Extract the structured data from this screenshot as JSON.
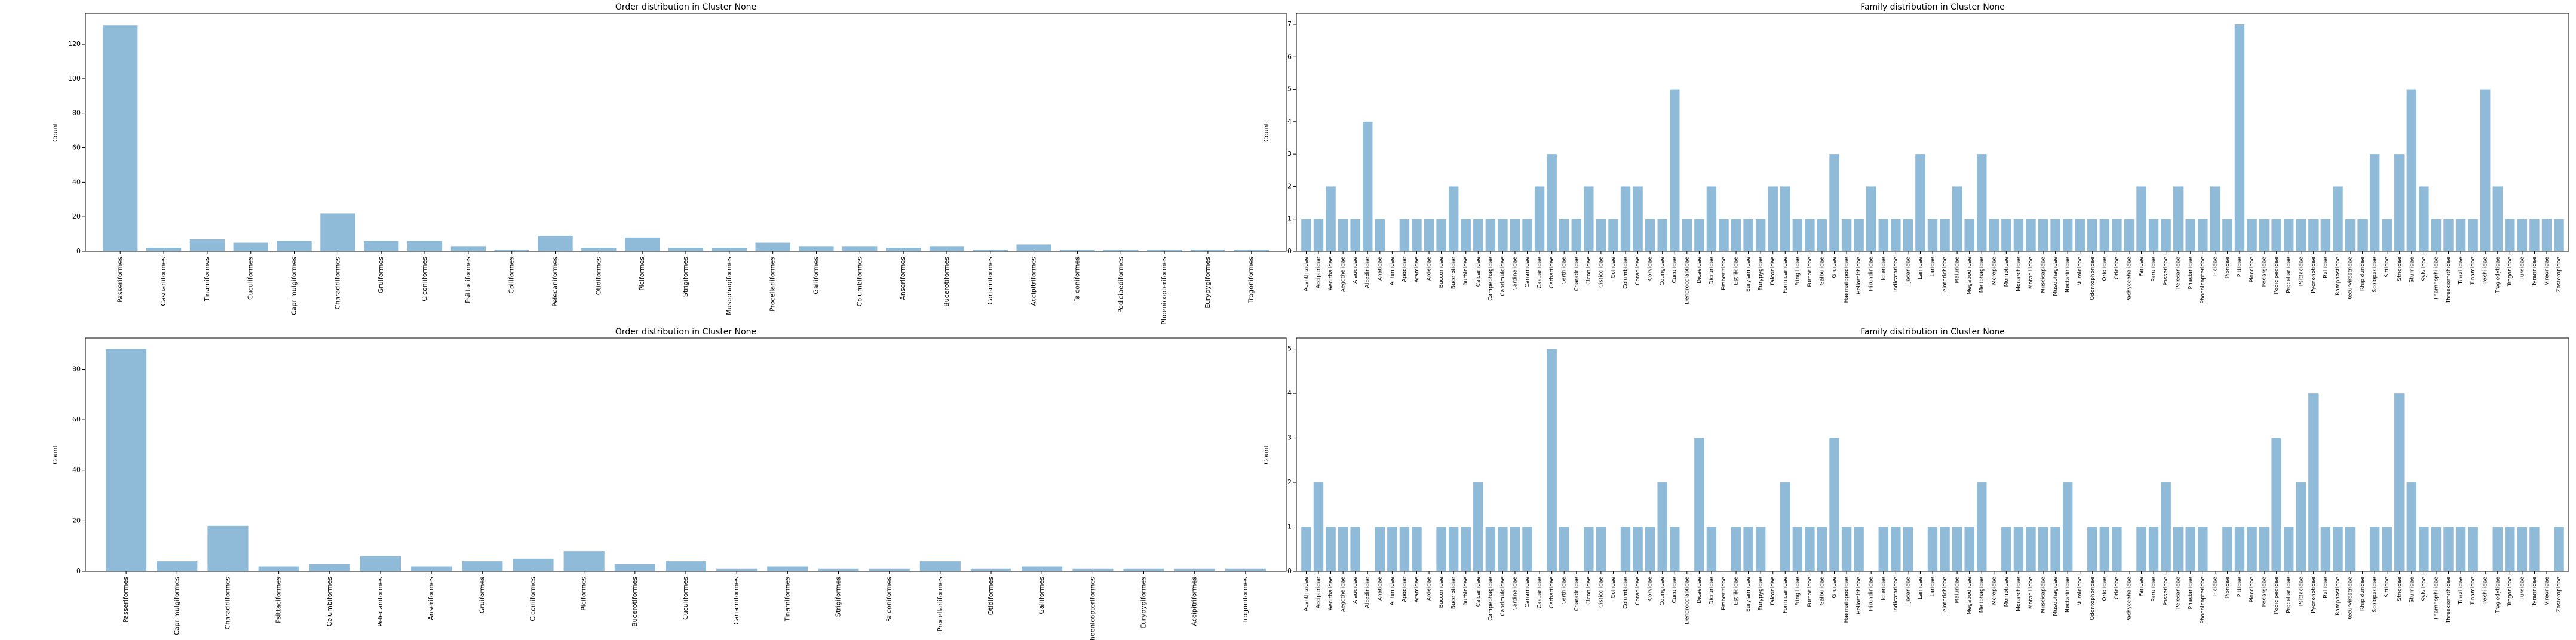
{
  "chart_data": [
    {
      "type": "bar",
      "title": "Order distribution in Cluster None",
      "ylabel": "Count",
      "color": "#8fbbd9",
      "categories": [
        "Passeriformes",
        "Casuariiformes",
        "Tinamiformes",
        "Cuculiformes",
        "Caprimulgiformes",
        "Charadriiformes",
        "Gruiformes",
        "Ciconiiformes",
        "Psittaciformes",
        "Coliiformes",
        "Pelecaniformes",
        "Otidiformes",
        "Piciformes",
        "Strigiformes",
        "Musophagiformes",
        "Procellariiformes",
        "Galliformes",
        "Columbiformes",
        "Anseriformes",
        "Bucerotiformes",
        "Cariamiformes",
        "Accipitriformes",
        "Falconiformes",
        "Podicipediformes",
        "Phoenicopteriformes",
        "Eurypygiformes",
        "Trogoniformes"
      ],
      "values": [
        131,
        2,
        7,
        5,
        6,
        22,
        6,
        6,
        3,
        1,
        9,
        2,
        8,
        2,
        2,
        5,
        3,
        3,
        2,
        3,
        1,
        4,
        1,
        1,
        1,
        1,
        1
      ],
      "ylim": [
        0,
        138
      ],
      "yticks": [
        0,
        20,
        40,
        60,
        80,
        100,
        120
      ]
    },
    {
      "type": "bar",
      "title": "Family distribution in Cluster None",
      "ylabel": "Count",
      "color": "#8fbbd9",
      "categories": [
        "Acanthizidae",
        "Accipitridae",
        "Aegithalidae",
        "Aegothelidae",
        "Alaudidae",
        "Alcedinidae",
        "Anatidae",
        "Anhimidae",
        "Apodidae",
        "Aramidae",
        "Ardeidae",
        "Bucconidae",
        "Bucerotidae",
        "Burhinidae",
        "Calcariidae",
        "Campephagidae",
        "Caprimulgidae",
        "Cardinalidae",
        "Cariamidae",
        "Casuariidae",
        "Cathartidae",
        "Certhiidae",
        "Charadriidae",
        "Ciconiidae",
        "Cisticolidae",
        "Coliidae",
        "Columbidae",
        "Coraciidae",
        "Corvidae",
        "Cotingidae",
        "Cuculidae",
        "Dendrocolaptidae",
        "Dicaeidae",
        "Dicruridae",
        "Emberizidae",
        "Estrildidae",
        "Eurylaimidae",
        "Eurypygidae",
        "Falconidae",
        "Formicariidae",
        "Fringillidae",
        "Furnariidae",
        "Galbulidae",
        "Gruidae",
        "Haematopodidae",
        "Heliornithidae",
        "Hirundinidae",
        "Icteridae",
        "Indicatoridae",
        "Jacanidae",
        "Laniidae",
        "Laridae",
        "Leiothrichidae",
        "Maluridae",
        "Megapodiidae",
        "Meliphagidae",
        "Meropidae",
        "Momotidae",
        "Monarchidae",
        "Motacillidae",
        "Muscicapidae",
        "Musophagidae",
        "Nectariniidae",
        "Numididae",
        "Odontophoridae",
        "Oriolidae",
        "Otididae",
        "Pachycephalidae",
        "Paridae",
        "Parulidae",
        "Passeridae",
        "Pelecanidae",
        "Phasianidae",
        "Phoenicopteridae",
        "Picidae",
        "Pipridae",
        "Pittidae",
        "Ploceidae",
        "Podargidae",
        "Podicipedidae",
        "Procellariidae",
        "Psittacidae",
        "Pycnonotidae",
        "Rallidae",
        "Ramphastidae",
        "Recurvirostridae",
        "Rhipiduridae",
        "Scolopacidae",
        "Sittidae",
        "Strigidae",
        "Sturnidae",
        "Sylviidae",
        "Thamnophilidae",
        "Threskiornithidae",
        "Timaliidae",
        "Tinamidae",
        "Trochilidae",
        "Troglodytidae",
        "Trogonidae",
        "Turdidae",
        "Tyrannidae",
        "Vireonidae",
        "Zosteropidae"
      ],
      "values": [
        1,
        1,
        2,
        1,
        1,
        4,
        1,
        0,
        1,
        1,
        1,
        1,
        2,
        1,
        1,
        1,
        1,
        1,
        1,
        2,
        3,
        1,
        1,
        2,
        1,
        1,
        2,
        2,
        1,
        1,
        5,
        1,
        1,
        2,
        1,
        1,
        1,
        1,
        2,
        2,
        1,
        1,
        1,
        3,
        1,
        1,
        2,
        1,
        1,
        1,
        3,
        1,
        1,
        2,
        1,
        3,
        1,
        1,
        1,
        1,
        1,
        1,
        1,
        1,
        1,
        1,
        1,
        1,
        2,
        1,
        1,
        2,
        1,
        1,
        2,
        1,
        7,
        1,
        1,
        1,
        1,
        1,
        1,
        1,
        2,
        1,
        1,
        3,
        1,
        3,
        5,
        2,
        1,
        1,
        1,
        1,
        5,
        2,
        1,
        1,
        1,
        1,
        1
      ],
      "ylim": [
        0,
        7.35
      ],
      "yticks": [
        0,
        1,
        2,
        3,
        4,
        5,
        6,
        7
      ]
    },
    {
      "type": "bar",
      "title": "Order distribution in Cluster None",
      "ylabel": "Count",
      "color": "#8fbbd9",
      "categories": [
        "Passeriformes",
        "Caprimulgiformes",
        "Charadriiformes",
        "Psittaciformes",
        "Columbiformes",
        "Pelecaniformes",
        "Anseriformes",
        "Gruiformes",
        "Ciconiiformes",
        "Piciformes",
        "Bucerotiformes",
        "Cuculiformes",
        "Cariamiformes",
        "Tinamiformes",
        "Strigiformes",
        "Falconiformes",
        "Procellariiformes",
        "Otidiformes",
        "Galliformes",
        "Phoenicopteriformes",
        "Eurypygiformes",
        "Accipitriformes",
        "Trogoniformes"
      ],
      "values": [
        88,
        4,
        18,
        2,
        3,
        6,
        2,
        4,
        5,
        8,
        3,
        4,
        1,
        2,
        1,
        1,
        4,
        1,
        2,
        1,
        1,
        1,
        1
      ],
      "ylim": [
        0,
        92.4
      ],
      "yticks": [
        0,
        20,
        40,
        60,
        80
      ]
    },
    {
      "type": "bar",
      "title": "Family distribution in Cluster None",
      "ylabel": "Count",
      "color": "#8fbbd9",
      "categories": [
        "Acanthizidae",
        "Accipitridae",
        "Aegithalidae",
        "Aegothelidae",
        "Alaudidae",
        "Alcedinidae",
        "Anatidae",
        "Anhimidae",
        "Apodidae",
        "Aramidae",
        "Ardeidae",
        "Bucconidae",
        "Bucerotidae",
        "Burhinidae",
        "Calcariidae",
        "Campephagidae",
        "Caprimulgidae",
        "Cardinalidae",
        "Cariamidae",
        "Casuariidae",
        "Cathartidae",
        "Certhiidae",
        "Charadriidae",
        "Ciconiidae",
        "Cisticolidae",
        "Coliidae",
        "Columbidae",
        "Coraciidae",
        "Corvidae",
        "Cotingidae",
        "Cuculidae",
        "Dendrocolaptidae",
        "Dicaeidae",
        "Dicruridae",
        "Emberizidae",
        "Estrildidae",
        "Eurylaimidae",
        "Eurypygidae",
        "Falconidae",
        "Formicariidae",
        "Fringillidae",
        "Furnariidae",
        "Galbulidae",
        "Gruidae",
        "Haematopodidae",
        "Heliornithidae",
        "Hirundinidae",
        "Icteridae",
        "Indicatoridae",
        "Jacanidae",
        "Laniidae",
        "Laridae",
        "Leiothrichidae",
        "Maluridae",
        "Megapodiidae",
        "Meliphagidae",
        "Meropidae",
        "Momotidae",
        "Monarchidae",
        "Motacillidae",
        "Muscicapidae",
        "Musophagidae",
        "Nectariniidae",
        "Numididae",
        "Odontophoridae",
        "Oriolidae",
        "Otididae",
        "Pachycephalidae",
        "Paridae",
        "Parulidae",
        "Passeridae",
        "Pelecanidae",
        "Phasianidae",
        "Phoenicopteridae",
        "Picidae",
        "Pipridae",
        "Pittidae",
        "Ploceidae",
        "Podargidae",
        "Podicipedidae",
        "Procellariidae",
        "Psittacidae",
        "Pycnonotidae",
        "Rallidae",
        "Ramphastidae",
        "Recurvirostridae",
        "Rhipiduridae",
        "Scolopacidae",
        "Sittidae",
        "Strigidae",
        "Sturnidae",
        "Sylviidae",
        "Thamnophilidae",
        "Threskiornithidae",
        "Timaliidae",
        "Tinamidae",
        "Trochilidae",
        "Troglodytidae",
        "Trogonidae",
        "Turdidae",
        "Tyrannidae",
        "Vireonidae",
        "Zosteropidae"
      ],
      "values": [
        1,
        2,
        1,
        1,
        1,
        0,
        1,
        1,
        1,
        1,
        0,
        1,
        1,
        1,
        2,
        1,
        1,
        1,
        1,
        0,
        5,
        1,
        0,
        1,
        1,
        0,
        1,
        1,
        1,
        2,
        1,
        0,
        3,
        1,
        0,
        1,
        1,
        1,
        0,
        2,
        1,
        1,
        1,
        3,
        1,
        1,
        0,
        1,
        1,
        1,
        0,
        1,
        1,
        1,
        1,
        2,
        0,
        1,
        1,
        1,
        1,
        1,
        2,
        0,
        1,
        1,
        1,
        0,
        1,
        1,
        2,
        1,
        1,
        1,
        0,
        1,
        1,
        1,
        1,
        3,
        1,
        2,
        4,
        1,
        1,
        1,
        0,
        1,
        1,
        4,
        2,
        1,
        1,
        1,
        1,
        1,
        0,
        1,
        1,
        1,
        1,
        0,
        1
      ],
      "ylim": [
        0,
        5.25
      ],
      "yticks": [
        0,
        1,
        2,
        3,
        4,
        5
      ]
    }
  ]
}
